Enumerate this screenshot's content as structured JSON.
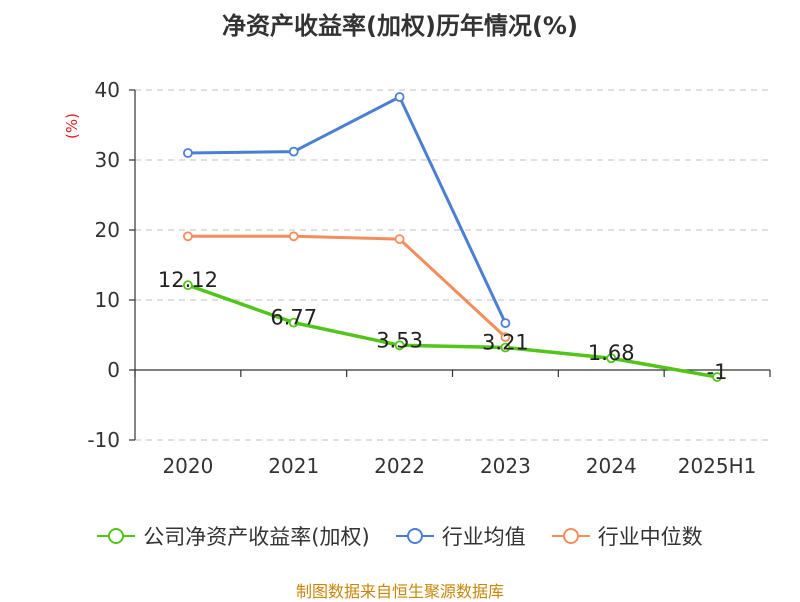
{
  "chart_data": {
    "type": "line",
    "title": "净资产收益率(加权)历年情况(%)",
    "ylabel": "(%)",
    "categories": [
      "2020",
      "2021",
      "2022",
      "2023",
      "2024",
      "2025H1"
    ],
    "ylim": [
      -10,
      40
    ],
    "yticks": [
      -10,
      0,
      10,
      20,
      30,
      40
    ],
    "grid": true,
    "legend_position": "bottom",
    "series": [
      {
        "name": "公司净资产收益率(加权)",
        "color": "#52c41a",
        "values": [
          12.12,
          6.77,
          3.53,
          3.21,
          1.68,
          -1
        ],
        "labels": [
          "12.12",
          "6.77",
          "3.53",
          "3.21",
          "1.68",
          "-1"
        ]
      },
      {
        "name": "行业均值",
        "color": "#4a7fd4",
        "values": [
          31,
          31.2,
          39,
          6.7,
          null,
          null
        ]
      },
      {
        "name": "行业中位数",
        "color": "#f58c5a",
        "values": [
          19.1,
          19.1,
          18.7,
          4.7,
          null,
          null
        ]
      }
    ]
  },
  "source_note": "制图数据来自恒生聚源数据库"
}
